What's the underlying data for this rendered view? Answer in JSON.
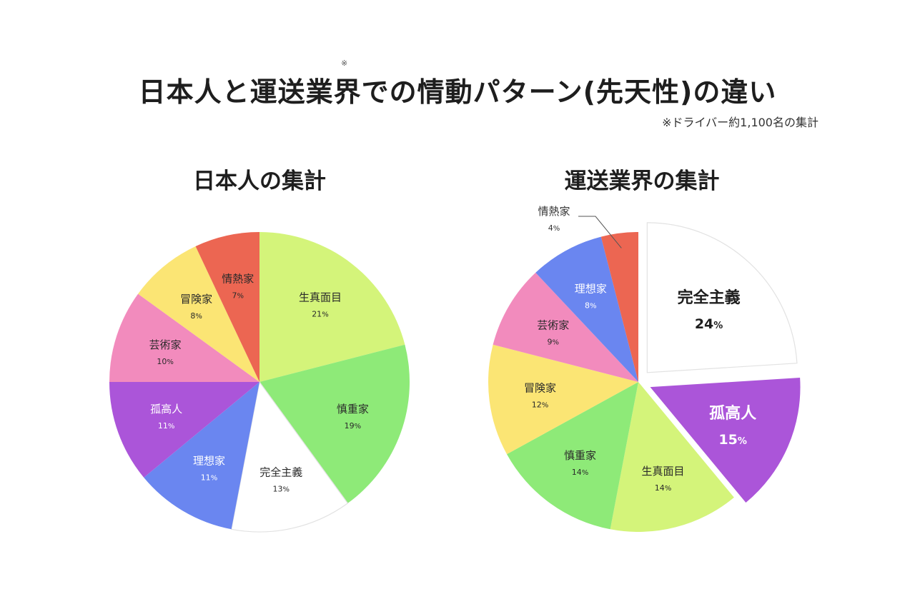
{
  "title": {
    "marker": "※",
    "text": "日本人と運送業界での情動パターン(先天性)の違い"
  },
  "note": "※ドライバー約1,100名の集計",
  "colors": {
    "生真面目": "#d4f47a",
    "慎重家": "#8eea78",
    "完全主義": "#ffffff",
    "理想家": "#6a86f0",
    "孤高人": "#ab55d9",
    "芸術家": "#f28bbd",
    "冒険家": "#fbe574",
    "情熱家": "#ec6652"
  },
  "chart_data": [
    {
      "type": "pie",
      "title": "日本人の集計",
      "unit": "%",
      "slices": [
        {
          "label": "生真面目",
          "value": 21
        },
        {
          "label": "慎重家",
          "value": 19
        },
        {
          "label": "完全主義",
          "value": 13
        },
        {
          "label": "理想家",
          "value": 11
        },
        {
          "label": "孤高人",
          "value": 11
        },
        {
          "label": "芸術家",
          "value": 10
        },
        {
          "label": "冒険家",
          "value": 8
        },
        {
          "label": "情熱家",
          "value": 7
        }
      ]
    },
    {
      "type": "pie",
      "title": "運送業界の集計",
      "unit": "%",
      "slices": [
        {
          "label": "完全主義",
          "value": 24,
          "exploded": true,
          "emphasis": true
        },
        {
          "label": "孤高人",
          "value": 15,
          "exploded": true,
          "emphasis": true
        },
        {
          "label": "生真面目",
          "value": 14
        },
        {
          "label": "慎重家",
          "value": 14
        },
        {
          "label": "冒険家",
          "value": 12
        },
        {
          "label": "芸術家",
          "value": 9
        },
        {
          "label": "理想家",
          "value": 8
        },
        {
          "label": "情熱家",
          "value": 4,
          "callout": true
        }
      ]
    }
  ]
}
